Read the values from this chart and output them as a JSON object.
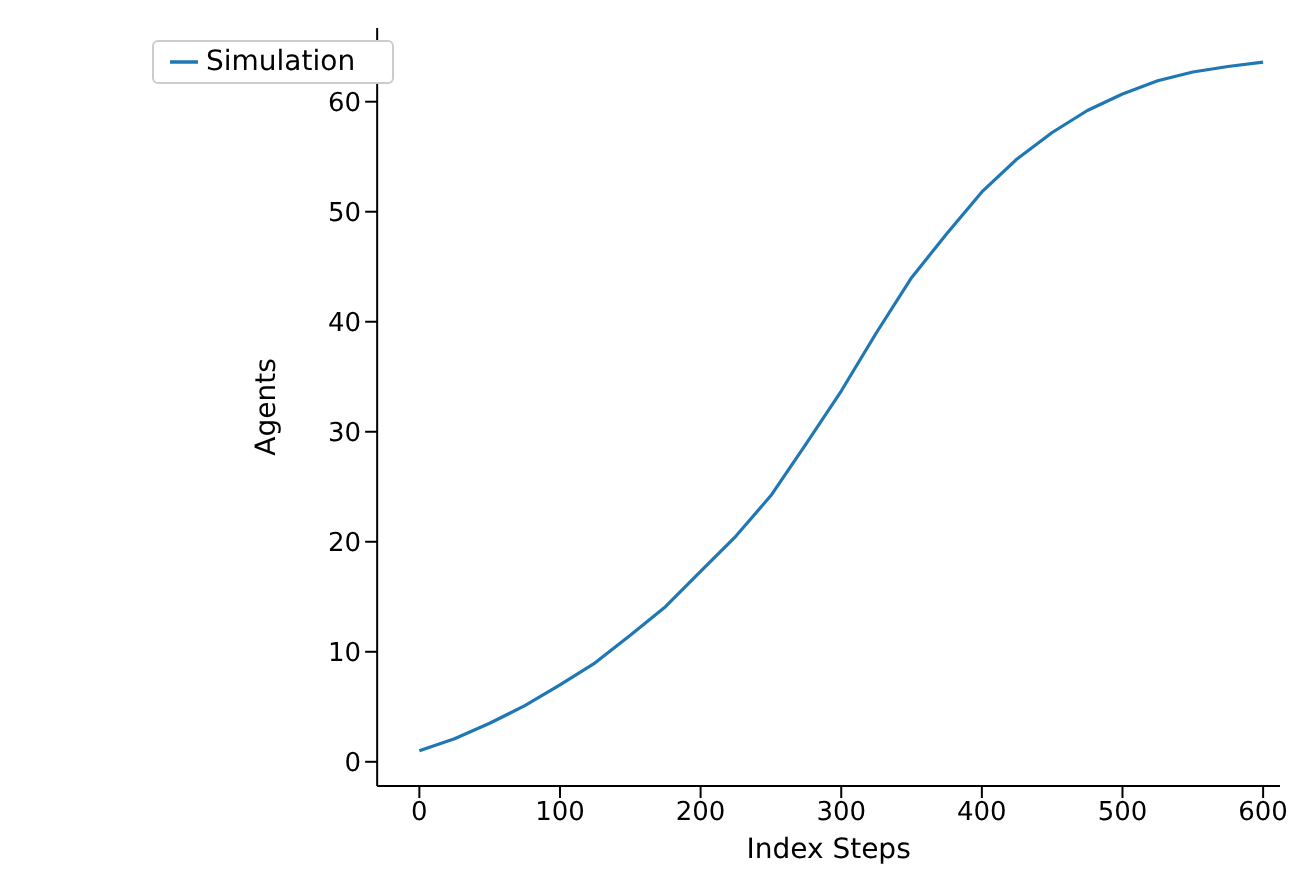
{
  "chart_data": {
    "type": "line",
    "xlabel": "Index Steps",
    "ylabel": "Agents",
    "x": [
      0,
      25,
      50,
      75,
      100,
      125,
      150,
      175,
      200,
      225,
      250,
      275,
      300,
      325,
      350,
      375,
      400,
      425,
      450,
      475,
      500,
      525,
      550,
      575,
      600
    ],
    "series": [
      {
        "name": "Simulation",
        "color": "#1f77b4",
        "values": [
          1.0,
          2.1,
          3.5,
          5.1,
          7.0,
          9.0,
          11.5,
          14.1,
          17.3,
          20.5,
          24.2,
          28.9,
          33.7,
          39.0,
          44.0,
          48.0,
          51.8,
          54.8,
          57.2,
          59.2,
          60.7,
          61.9,
          62.7,
          63.2,
          63.6
        ]
      }
    ],
    "xlim": [
      -30,
      612
    ],
    "ylim": [
      -2.2,
      66.7
    ],
    "xticks": [
      0,
      100,
      200,
      300,
      400,
      500,
      600
    ],
    "yticks": [
      0,
      10,
      20,
      30,
      40,
      50,
      60
    ],
    "legend": "top left",
    "grid": false,
    "marker": "none",
    "line_style": "solid"
  }
}
